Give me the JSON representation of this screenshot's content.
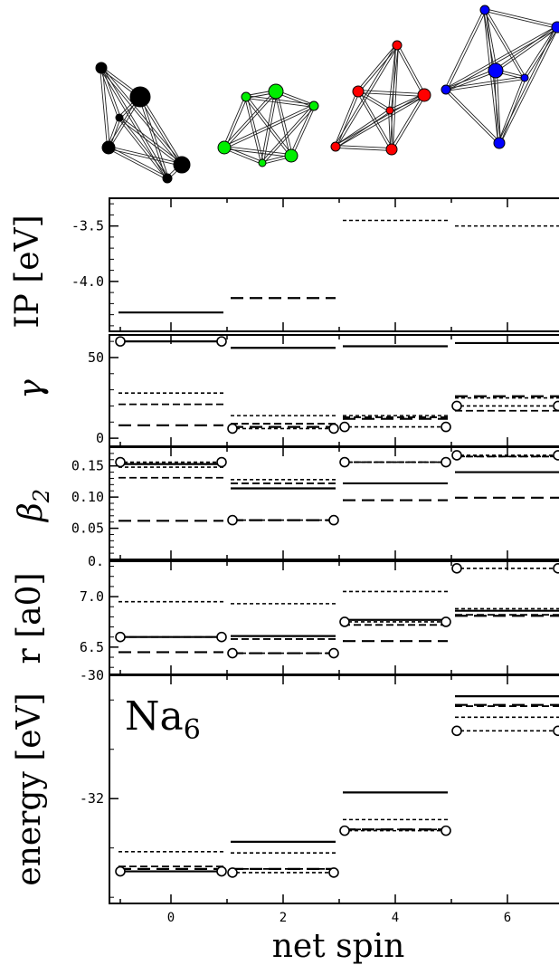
{
  "figure": {
    "xlabel": "net spin",
    "x_ticks": [
      "0",
      "2",
      "4",
      "6"
    ],
    "annotation_main": "Na",
    "annotation_sub": "6"
  },
  "clusters": [
    {
      "spin": 0,
      "color": "#000000"
    },
    {
      "spin": 2,
      "color": "#00ee00"
    },
    {
      "spin": 4,
      "color": "#ff0000"
    },
    {
      "spin": 6,
      "color": "#0000ff"
    }
  ],
  "chart_data": [
    {
      "type": "line",
      "panel": "ip",
      "ylabel": "IP [eV]",
      "x": [
        0,
        2,
        4,
        6
      ],
      "ylim": [
        -4.45,
        -3.25
      ],
      "ticks": [
        {
          "v": -3.5,
          "t": "-3.5"
        },
        {
          "v": -4.0,
          "t": "-4.0"
        }
      ],
      "series": [
        {
          "style": "solid",
          "values": [
            -4.28,
            null,
            null,
            null
          ]
        },
        {
          "style": "longdash",
          "values": [
            null,
            -4.15,
            null,
            null
          ]
        },
        {
          "style": "shortdash",
          "values": [
            null,
            null,
            -3.45,
            -3.5
          ]
        }
      ]
    },
    {
      "type": "line",
      "panel": "gamma",
      "ylabel": "γ",
      "x": [
        0,
        2,
        4,
        6
      ],
      "ylim": [
        -5,
        64
      ],
      "ticks": [
        {
          "v": 50,
          "t": "50"
        },
        {
          "v": 0,
          "t": "0"
        }
      ],
      "series": [
        {
          "style": "solid",
          "values": [
            60,
            56,
            57,
            59
          ]
        },
        {
          "style": "shortdash",
          "values": [
            28,
            14,
            14,
            25
          ]
        },
        {
          "style": "mediumdash",
          "values": [
            21,
            9,
            13,
            17
          ]
        },
        {
          "style": "longdash",
          "values": [
            8,
            7,
            12,
            26
          ]
        },
        {
          "style": "circledash",
          "values": [
            60,
            6,
            7,
            20
          ]
        }
      ]
    },
    {
      "type": "line",
      "panel": "beta2",
      "ylabel": "β2",
      "x": [
        0,
        2,
        4,
        6
      ],
      "ylim": [
        0.0,
        0.18
      ],
      "ticks": [
        {
          "v": 0.15,
          "t": "0.15"
        },
        {
          "v": 0.1,
          "t": "0.10"
        },
        {
          "v": 0.05,
          "t": "0.05"
        },
        {
          "v": 0.0,
          "t": "0."
        }
      ],
      "series": [
        {
          "style": "solid",
          "values": [
            0.153,
            0.114,
            0.122,
            0.14
          ]
        },
        {
          "style": "shortdash",
          "values": [
            0.148,
            0.128,
            0.156,
            0.165
          ]
        },
        {
          "style": "mediumdash",
          "values": [
            0.131,
            0.122,
            0.156,
            0.165
          ]
        },
        {
          "style": "longdash",
          "values": [
            0.062,
            0.063,
            0.095,
            0.099
          ]
        },
        {
          "style": "circledash",
          "values": [
            0.156,
            0.063,
            0.156,
            0.167
          ]
        }
      ]
    },
    {
      "type": "line",
      "panel": "r",
      "ylabel": "r [a0]",
      "x": [
        0,
        2,
        4,
        6
      ],
      "ylim": [
        6.23,
        7.35
      ],
      "ticks": [
        {
          "v": 7.0,
          "t": "7.0"
        },
        {
          "v": 6.5,
          "t": "6.5"
        }
      ],
      "series": [
        {
          "style": "solid",
          "values": [
            6.6,
            6.61,
            6.77,
            6.86
          ]
        },
        {
          "style": "shortdash",
          "values": [
            6.95,
            6.93,
            7.05,
            6.88
          ]
        },
        {
          "style": "mediumdash",
          "values": [
            6.6,
            6.58,
            6.72,
            6.82
          ]
        },
        {
          "style": "longdash",
          "values": [
            6.45,
            6.44,
            6.56,
            6.81
          ]
        },
        {
          "style": "circledash",
          "values": [
            6.6,
            6.44,
            6.75,
            7.28
          ]
        }
      ]
    },
    {
      "type": "line",
      "panel": "energy",
      "ylabel": "energy [eV]",
      "x": [
        0,
        2,
        4,
        6
      ],
      "ylim": [
        -32.85,
        -31.0
      ],
      "ticks": [
        {
          "v": -30,
          "t": "-30"
        },
        {
          "v": -32,
          "t": "-32"
        }
      ],
      "series": [
        {
          "style": "solid",
          "values": [
            -32.59,
            -32.35,
            -31.95,
            -31.17
          ]
        },
        {
          "style": "shortdash",
          "values": [
            -32.43,
            -32.44,
            -32.17,
            -31.34
          ]
        },
        {
          "style": "mediumdash",
          "values": [
            -32.55,
            -32.57,
            -32.25,
            -31.25
          ]
        },
        {
          "style": "longdash",
          "values": [
            -32.57,
            -32.57,
            -32.25,
            -31.24
          ]
        },
        {
          "style": "circledash",
          "values": [
            -32.59,
            -32.6,
            -32.26,
            -31.45
          ]
        }
      ]
    }
  ]
}
